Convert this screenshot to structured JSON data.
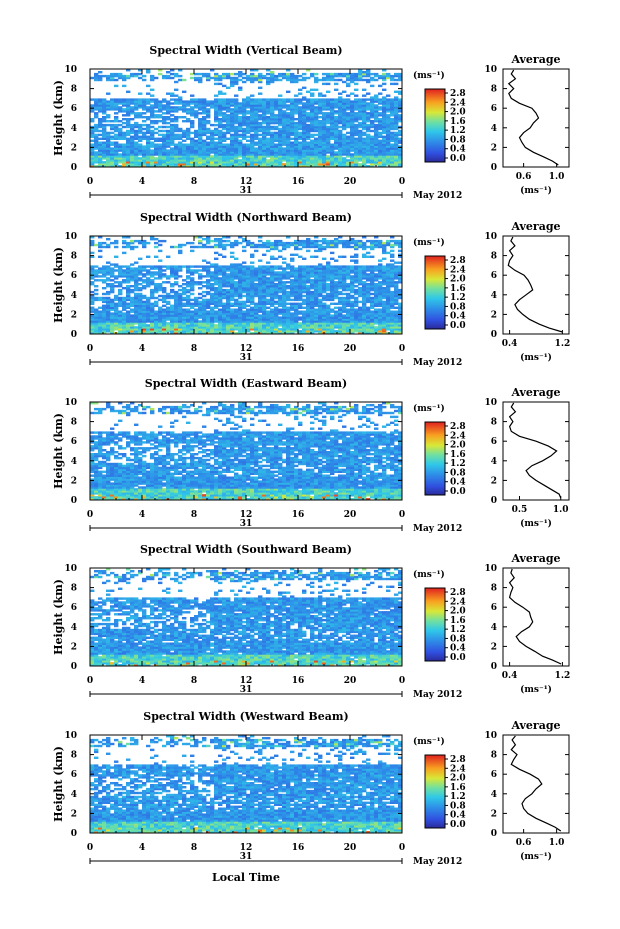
{
  "chart_data": [
    {
      "type": "heatmap",
      "title": "Spectral Width (Vertical Beam)",
      "ylabel": "Height (km)",
      "x_ticks": [
        "0",
        "4",
        "8",
        "12",
        "16",
        "20",
        "0"
      ],
      "y_ticks": [
        "0",
        "2",
        "4",
        "6",
        "8",
        "10"
      ],
      "xlim": [
        0,
        24
      ],
      "ylim": [
        0,
        10
      ],
      "day_label": "31",
      "month_label": "May 2012",
      "colorbar": {
        "unit": "(ms⁻¹)",
        "ticks": [
          "2.8",
          "2.4",
          "2.0",
          "1.6",
          "1.2",
          "0.8",
          "0.4",
          "0.0"
        ],
        "range": [
          0,
          2.8
        ]
      },
      "profile": {
        "title": "Average",
        "xlabel": "(ms⁻¹)",
        "x_ticks": [
          "0.6",
          "1.0"
        ],
        "x_tick_values": [
          0.6,
          1.0
        ],
        "xlim": [
          0.35,
          1.15
        ],
        "height": [
          0.2,
          0.6,
          1.0,
          1.5,
          2.0,
          2.5,
          3.0,
          3.5,
          4.0,
          4.5,
          5.0,
          5.5,
          6.0,
          6.5,
          7.0,
          7.5,
          8.0,
          8.5,
          9.0,
          9.5,
          9.9
        ],
        "values": [
          1.02,
          0.95,
          0.85,
          0.72,
          0.62,
          0.58,
          0.55,
          0.6,
          0.68,
          0.72,
          0.78,
          0.75,
          0.7,
          0.55,
          0.45,
          0.42,
          0.48,
          0.42,
          0.5,
          0.45,
          0.48
        ]
      }
    },
    {
      "type": "heatmap",
      "title": "Spectral Width (Northward Beam)",
      "ylabel": "Height (km)",
      "x_ticks": [
        "0",
        "4",
        "8",
        "12",
        "16",
        "20",
        "0"
      ],
      "y_ticks": [
        "0",
        "2",
        "4",
        "6",
        "8",
        "10"
      ],
      "xlim": [
        0,
        24
      ],
      "ylim": [
        0,
        10
      ],
      "day_label": "31",
      "month_label": "May 2012",
      "colorbar": {
        "unit": "(ms⁻¹)",
        "ticks": [
          "2.8",
          "2.4",
          "2.0",
          "1.6",
          "1.2",
          "0.8",
          "0.4",
          "0.0"
        ],
        "range": [
          0,
          2.8
        ]
      },
      "profile": {
        "title": "Average",
        "xlabel": "(ms⁻¹)",
        "x_ticks": [
          "0.4",
          "1.2"
        ],
        "x_tick_values": [
          0.4,
          1.2
        ],
        "xlim": [
          0.3,
          1.3
        ],
        "height": [
          0.2,
          0.6,
          1.0,
          1.5,
          2.0,
          2.5,
          3.0,
          3.5,
          4.0,
          4.5,
          5.0,
          5.5,
          6.0,
          6.5,
          7.0,
          7.5,
          8.0,
          8.5,
          9.0,
          9.5,
          9.9
        ],
        "values": [
          1.2,
          1.0,
          0.85,
          0.7,
          0.6,
          0.52,
          0.48,
          0.55,
          0.65,
          0.75,
          0.72,
          0.68,
          0.62,
          0.48,
          0.38,
          0.4,
          0.45,
          0.4,
          0.48,
          0.42,
          0.45
        ]
      }
    },
    {
      "type": "heatmap",
      "title": "Spectral Width (Eastward Beam)",
      "ylabel": "Height (km)",
      "x_ticks": [
        "0",
        "4",
        "8",
        "12",
        "16",
        "20",
        "0"
      ],
      "y_ticks": [
        "0",
        "2",
        "4",
        "6",
        "8",
        "10"
      ],
      "xlim": [
        0,
        24
      ],
      "ylim": [
        0,
        10
      ],
      "day_label": "31",
      "month_label": "May 2012",
      "colorbar": {
        "unit": "(ms⁻¹)",
        "ticks": [
          "2.8",
          "2.4",
          "2.0",
          "1.6",
          "1.2",
          "0.8",
          "0.4",
          "0.0"
        ],
        "range": [
          0,
          2.8
        ]
      },
      "profile": {
        "title": "Average",
        "xlabel": "(ms⁻¹)",
        "x_ticks": [
          "0.5",
          "1.0"
        ],
        "x_tick_values": [
          0.5,
          1.0
        ],
        "xlim": [
          0.3,
          1.1
        ],
        "height": [
          0.2,
          0.6,
          1.0,
          1.5,
          2.0,
          2.5,
          3.0,
          3.5,
          4.0,
          4.5,
          5.0,
          5.5,
          6.0,
          6.5,
          7.0,
          7.5,
          8.0,
          8.5,
          9.0,
          9.5,
          9.9
        ],
        "values": [
          1.0,
          0.98,
          0.9,
          0.8,
          0.7,
          0.62,
          0.58,
          0.65,
          0.78,
          0.88,
          0.95,
          0.85,
          0.7,
          0.5,
          0.4,
          0.38,
          0.42,
          0.38,
          0.45,
          0.4,
          0.43
        ]
      }
    },
    {
      "type": "heatmap",
      "title": "Spectral Width (Southward Beam)",
      "ylabel": "Height (km)",
      "x_ticks": [
        "0",
        "4",
        "8",
        "12",
        "16",
        "20",
        "0"
      ],
      "y_ticks": [
        "0",
        "2",
        "4",
        "6",
        "8",
        "10"
      ],
      "xlim": [
        0,
        24
      ],
      "ylim": [
        0,
        10
      ],
      "day_label": "31",
      "month_label": "May 2012",
      "colorbar": {
        "unit": "(ms⁻¹)",
        "ticks": [
          "2.8",
          "2.4",
          "2.0",
          "1.6",
          "1.2",
          "0.8",
          "0.4",
          "0.0"
        ],
        "range": [
          0,
          2.8
        ]
      },
      "profile": {
        "title": "Average",
        "xlabel": "(ms⁻¹)",
        "x_ticks": [
          "0.4",
          "1.2"
        ],
        "x_tick_values": [
          0.4,
          1.2
        ],
        "xlim": [
          0.3,
          1.3
        ],
        "height": [
          0.2,
          0.6,
          1.0,
          1.5,
          2.0,
          2.5,
          3.0,
          3.5,
          4.0,
          4.5,
          5.0,
          5.5,
          6.0,
          6.5,
          7.0,
          7.5,
          8.0,
          8.5,
          9.0,
          9.5,
          9.9
        ],
        "values": [
          1.18,
          1.05,
          0.9,
          0.78,
          0.65,
          0.55,
          0.5,
          0.58,
          0.7,
          0.75,
          0.72,
          0.7,
          0.6,
          0.48,
          0.4,
          0.42,
          0.45,
          0.4,
          0.47,
          0.42,
          0.44
        ]
      }
    },
    {
      "type": "heatmap",
      "title": "Spectral Width (Westward Beam)",
      "ylabel": "Height (km)",
      "xlabel": "Local Time",
      "x_ticks": [
        "0",
        "4",
        "8",
        "12",
        "16",
        "20",
        "0"
      ],
      "y_ticks": [
        "0",
        "2",
        "4",
        "6",
        "8",
        "10"
      ],
      "xlim": [
        0,
        24
      ],
      "ylim": [
        0,
        10
      ],
      "day_label": "31",
      "month_label": "May 2012",
      "colorbar": {
        "unit": "(ms⁻¹)",
        "ticks": [
          "2.8",
          "2.4",
          "2.0",
          "1.6",
          "1.2",
          "0.8",
          "0.4",
          "0.0"
        ],
        "range": [
          0,
          2.8
        ]
      },
      "profile": {
        "title": "Average",
        "xlabel": "(ms⁻¹)",
        "x_ticks": [
          "0.6",
          "1.0"
        ],
        "x_tick_values": [
          0.6,
          1.0
        ],
        "xlim": [
          0.35,
          1.15
        ],
        "height": [
          0.2,
          0.6,
          1.0,
          1.5,
          2.0,
          2.5,
          3.0,
          3.5,
          4.0,
          4.5,
          5.0,
          5.5,
          6.0,
          6.5,
          7.0,
          7.5,
          8.0,
          8.5,
          9.0,
          9.5,
          9.9
        ],
        "values": [
          1.05,
          0.98,
          0.88,
          0.75,
          0.65,
          0.6,
          0.58,
          0.62,
          0.7,
          0.75,
          0.82,
          0.78,
          0.68,
          0.55,
          0.45,
          0.48,
          0.52,
          0.45,
          0.5,
          0.46,
          0.5
        ]
      }
    }
  ]
}
